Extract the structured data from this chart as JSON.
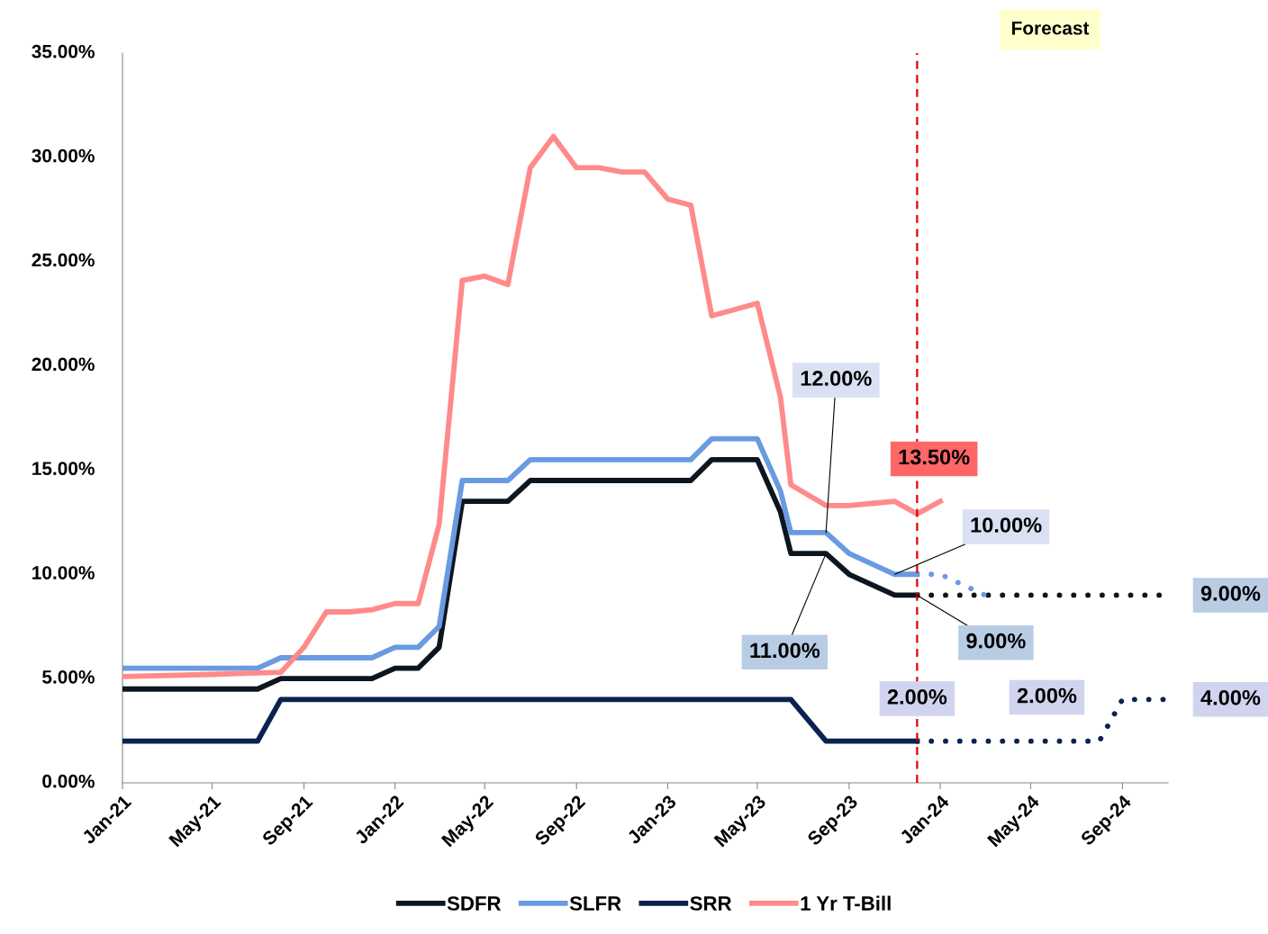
{
  "chart_data": {
    "type": "line",
    "title": null,
    "xlim": [
      "2021-01",
      "2024-11"
    ],
    "xticks": [
      {
        "value": "2021-01",
        "label": "Jan-21"
      },
      {
        "value": "2021-05",
        "label": "May-21"
      },
      {
        "value": "2021-09",
        "label": "Sep-21"
      },
      {
        "value": "2022-01",
        "label": "Jan-22"
      },
      {
        "value": "2022-05",
        "label": "May-22"
      },
      {
        "value": "2022-09",
        "label": "Sep-22"
      },
      {
        "value": "2023-01",
        "label": "Jan-23"
      },
      {
        "value": "2023-05",
        "label": "May-23"
      },
      {
        "value": "2023-09",
        "label": "Sep-23"
      },
      {
        "value": "2024-01",
        "label": "Jan-24"
      },
      {
        "value": "2024-05",
        "label": "May-24"
      },
      {
        "value": "2024-09",
        "label": "Sep-24"
      }
    ],
    "ylim": [
      0,
      35
    ],
    "yticks": [
      {
        "value": 0,
        "label": "0.00%"
      },
      {
        "value": 5,
        "label": "5.00%"
      },
      {
        "value": 10,
        "label": "10.00%"
      },
      {
        "value": 15,
        "label": "15.00%"
      },
      {
        "value": 20,
        "label": "20.00%"
      },
      {
        "value": 25,
        "label": "25.00%"
      },
      {
        "value": 30,
        "label": "30.00%"
      },
      {
        "value": 35,
        "label": "35.00%"
      }
    ],
    "grid": false,
    "legend": "bottom",
    "marker": "none",
    "line_style": "solid",
    "series": [
      {
        "name": "SDFR",
        "color": "#0d1620",
        "x": [
          "2021-01-01",
          "2021-07-01",
          "2021-08-01",
          "2021-12-01",
          "2022-01-01",
          "2022-02-01",
          "2022-03-01",
          "2022-04-01",
          "2022-06-01",
          "2022-07-01",
          "2023-02-01",
          "2023-03-01",
          "2023-05-01",
          "2023-06-01",
          "2023-06-15",
          "2023-08-01",
          "2023-09-01",
          "2023-11-01",
          "2023-12-01"
        ],
        "values": [
          4.5,
          4.5,
          5.0,
          5.0,
          5.5,
          5.5,
          6.5,
          13.5,
          13.5,
          14.5,
          14.5,
          15.5,
          15.5,
          13.0,
          11.0,
          11.0,
          10.0,
          9.0,
          9.0
        ]
      },
      {
        "name": "SLFR",
        "color": "#6a9ae0",
        "x": [
          "2021-01-01",
          "2021-07-01",
          "2021-08-01",
          "2021-12-01",
          "2022-01-01",
          "2022-02-01",
          "2022-03-01",
          "2022-04-01",
          "2022-06-01",
          "2022-07-01",
          "2023-02-01",
          "2023-03-01",
          "2023-05-01",
          "2023-06-01",
          "2023-06-15",
          "2023-08-01",
          "2023-09-01",
          "2023-11-01",
          "2023-12-01"
        ],
        "values": [
          5.5,
          5.5,
          6.0,
          6.0,
          6.5,
          6.5,
          7.5,
          14.5,
          14.5,
          15.5,
          15.5,
          16.5,
          16.5,
          14.0,
          12.0,
          12.0,
          11.0,
          10.0,
          10.0
        ]
      },
      {
        "name": "SRR",
        "color": "#0b2150",
        "x": [
          "2021-01-01",
          "2021-07-01",
          "2021-08-01",
          "2023-06-15",
          "2023-08-01",
          "2023-12-01"
        ],
        "values": [
          2.0,
          2.0,
          4.0,
          4.0,
          2.0,
          2.0
        ]
      },
      {
        "name": "1 Yr T-Bill",
        "color": "#ff8a8a",
        "x": [
          "2021-01-01",
          "2021-05-01",
          "2021-08-01",
          "2021-09-01",
          "2021-10-01",
          "2021-11-01",
          "2021-12-01",
          "2022-01-01",
          "2022-02-01",
          "2022-03-01",
          "2022-04-01",
          "2022-05-01",
          "2022-06-01",
          "2022-07-01",
          "2022-08-01",
          "2022-09-01",
          "2022-10-01",
          "2022-11-01",
          "2022-12-01",
          "2023-01-01",
          "2023-02-01",
          "2023-03-01",
          "2023-04-01",
          "2023-05-01",
          "2023-06-01",
          "2023-06-15",
          "2023-08-01",
          "2023-09-01",
          "2023-10-01",
          "2023-11-01",
          "2023-12-01",
          "2024-01-01"
        ],
        "values": [
          5.1,
          5.2,
          5.3,
          6.5,
          8.2,
          8.2,
          8.3,
          8.6,
          8.6,
          12.4,
          24.1,
          24.3,
          23.9,
          29.5,
          31.0,
          29.5,
          29.5,
          29.3,
          29.3,
          28.0,
          27.7,
          22.4,
          22.7,
          23.0,
          18.5,
          14.3,
          13.3,
          13.3,
          13.4,
          13.5,
          12.9,
          13.5
        ]
      },
      {
        "color": "#0d1620",
        "line_style": "dotted",
        "x": [
          "2023-12-01",
          "2024-11-01"
        ],
        "values": [
          9.0,
          9.0
        ]
      },
      {
        "color": "#6a9ae0",
        "line_style": "dotted",
        "x": [
          "2023-12-01",
          "2024-01-01",
          "2024-03-01"
        ],
        "values": [
          10.0,
          10.0,
          9.0
        ]
      },
      {
        "color": "#0b2150",
        "line_style": "dotted",
        "x": [
          "2023-12-01",
          "2024-05-01",
          "2024-08-01",
          "2024-09-01",
          "2024-11-01"
        ],
        "values": [
          2.0,
          2.0,
          2.0,
          4.0,
          4.0
        ]
      }
    ],
    "ref_lines": [
      {
        "axis": "x",
        "value": "2023-12-01",
        "label": null,
        "color": "#e00000",
        "line_style": "dashed"
      }
    ],
    "annotations": [
      {
        "text": "12.00%",
        "x": "2023-08-01",
        "y": 12.0
      },
      {
        "text": "11.00%",
        "x": "2023-08-01",
        "y": 11.0
      },
      {
        "text": "10.00%",
        "x": "2023-11-01",
        "y": 10.0
      },
      {
        "text": "9.00%",
        "x": "2023-12-01",
        "y": 9.0
      },
      {
        "text": "13.50%",
        "x": "2024-01-01",
        "y": 13.5
      },
      {
        "text": "2.00%",
        "x": "2023-12-01",
        "y": 2.0
      },
      {
        "text": "2.00%",
        "x": "2024-05-01",
        "y": 2.0
      },
      {
        "text": "9.00%",
        "x": "2024-11-01",
        "y": 9.0
      },
      {
        "text": "4.00%",
        "x": "2024-11-01",
        "y": 4.0
      },
      "Forecast"
    ]
  }
}
